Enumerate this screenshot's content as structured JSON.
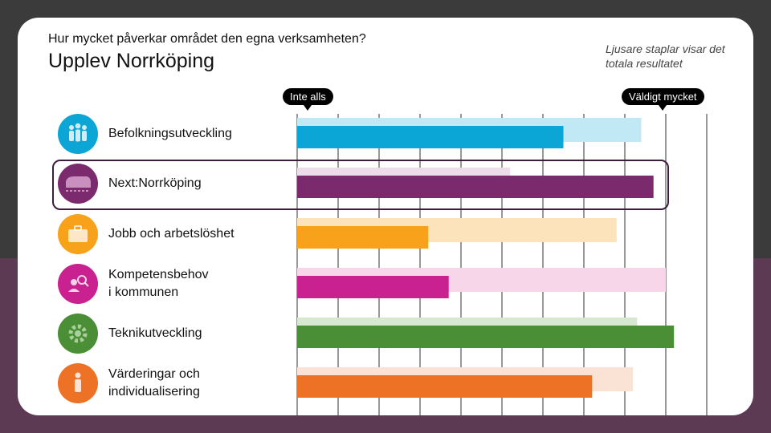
{
  "header": {
    "question": "Hur mycket påverkar området den egna verksamheten?",
    "title": "Upplev Norrköping",
    "note": "Ljusare staplar visar det totala resultatet"
  },
  "chart_data": {
    "type": "bar",
    "orientation": "horizontal",
    "scale_min_label": "Inte alls",
    "scale_max_label": "Väldigt mycket",
    "xlim": [
      0,
      1
    ],
    "grid": true,
    "categories": [
      "Befolkningsutveckling",
      "Next:Norrköping",
      "Jobb och arbetslöshet",
      "Kompetensbehov i kommunen",
      "Teknikutveckling",
      "Värderingar och individualisering"
    ],
    "category_lines": [
      [
        "Befolkningsutveckling"
      ],
      [
        "Next:Norrköping"
      ],
      [
        "Jobb och arbetslöshet"
      ],
      [
        "Kompetensbehov",
        "i kommunen"
      ],
      [
        "Teknikutveckling"
      ],
      [
        "Värderingar och",
        "individualisering"
      ]
    ],
    "series": [
      {
        "values": [
          0.84,
          0.52,
          0.78,
          0.9,
          0.83,
          0.82
        ]
      },
      {
        "values": [
          0.65,
          0.87,
          0.32,
          0.37,
          0.92,
          0.72
        ]
      }
    ],
    "colors": {
      "dark": [
        "#0ba6d5",
        "#7b2a6d",
        "#f8a11b",
        "#c9218f",
        "#4a8f35",
        "#ee7226"
      ],
      "light": [
        "#c1e8f5",
        "#eedcea",
        "#fde3bc",
        "#f6d6e8",
        "#d6e8cf",
        "#fae3d5"
      ],
      "icon": [
        "#0ba6d5",
        "#7b2a6d",
        "#f8a11b",
        "#c9218f",
        "#4a8f35",
        "#ee7226"
      ]
    },
    "highlighted_category": "Next:Norrköping"
  },
  "icons": [
    "people-icon",
    "train-icon",
    "briefcase-icon",
    "person-search-icon",
    "gear-icon",
    "person-icon"
  ]
}
